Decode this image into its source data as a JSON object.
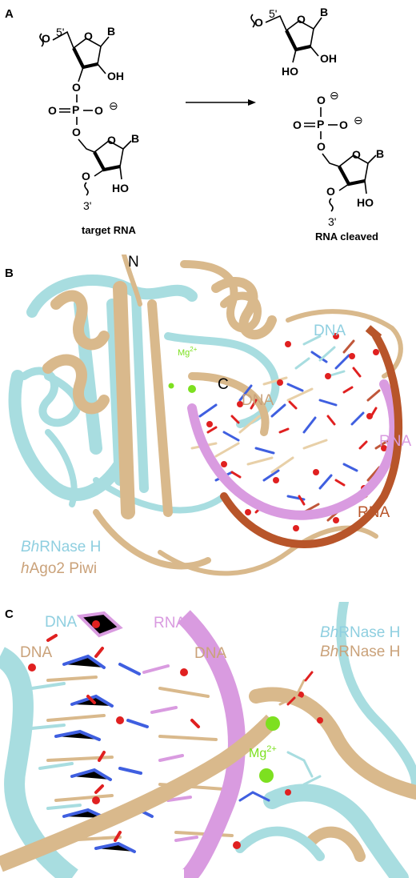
{
  "panels": {
    "a": "A",
    "b": "B",
    "c": "C"
  },
  "panel_a": {
    "five_prime": "5'",
    "three_prime": "3'",
    "atom_O": "O",
    "atom_B": "B",
    "atom_OH": "OH",
    "atom_HO": "HO",
    "atom_P": "P",
    "minus": "⊖",
    "target_caption": "target RNA",
    "cleaved_caption": "RNA cleaved"
  },
  "panel_b": {
    "n_term": "N",
    "c_term": "C",
    "mg": "Mg",
    "mg_charge": "2+",
    "dna_top": "DNA",
    "dna_mid": "DNA",
    "rna_right": "RNA",
    "rna_bottom": "RNA",
    "legend_bh_prefix": "Bh",
    "legend_bh_rest": "RNase H",
    "legend_h_prefix": "h",
    "legend_h_rest": "Ago2 Piwi"
  },
  "panel_c": {
    "dna_left_top": "DNA",
    "dna_left": "DNA",
    "rna": "RNA",
    "dna_center": "DNA",
    "bh1_prefix": "Bh",
    "bh1_rest": "RNase H",
    "bh2_prefix": "Bh",
    "bh2_rest": "RNase H",
    "mg": "Mg",
    "mg_charge": "2+"
  },
  "colors": {
    "cyan": "#a8dde0",
    "tan": "#d9b98c",
    "pink": "#d99be0",
    "rust": "#b8552a",
    "blue": "#3f5fe0",
    "red": "#e02020",
    "green": "#7de020"
  }
}
